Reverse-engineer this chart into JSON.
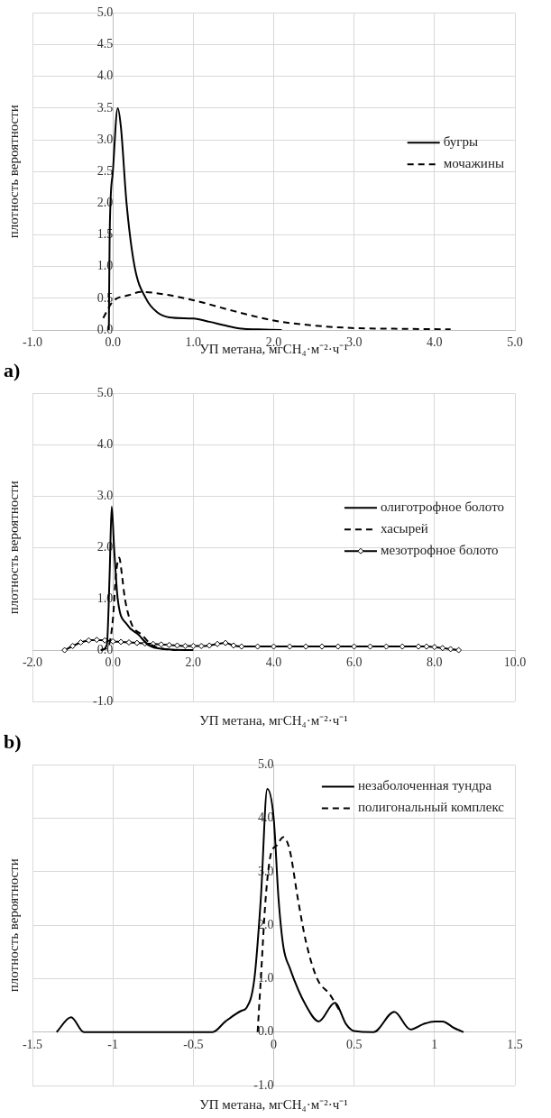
{
  "chart_data": [
    {
      "type": "line",
      "xlabel": "УП метана, мгCH₄·м⁻²·ч⁻¹",
      "ylabel": "плотность вероятности",
      "annotations": [
        "a)"
      ],
      "xlim": [
        -1,
        5
      ],
      "xticks": [
        {
          "value": -1,
          "label": "-1.0"
        },
        {
          "value": 0,
          "label": "0.0"
        },
        {
          "value": 1,
          "label": "1.0"
        },
        {
          "value": 2,
          "label": "2.0"
        },
        {
          "value": 3,
          "label": "3.0"
        },
        {
          "value": 4,
          "label": "4.0"
        },
        {
          "value": 5,
          "label": "5.0"
        }
      ],
      "ylim": [
        0,
        5
      ],
      "yticks": [
        {
          "value": 0,
          "label": "0.0"
        },
        {
          "value": 0.5,
          "label": "0.5"
        },
        {
          "value": 1,
          "label": "1.0"
        },
        {
          "value": 1.5,
          "label": "1.5"
        },
        {
          "value": 2,
          "label": "2.0"
        },
        {
          "value": 2.5,
          "label": "2.5"
        },
        {
          "value": 3,
          "label": "3.0"
        },
        {
          "value": 3.5,
          "label": "3.5"
        },
        {
          "value": 4,
          "label": "4.0"
        },
        {
          "value": 4.5,
          "label": "4.5"
        },
        {
          "value": 5,
          "label": "5.0"
        }
      ],
      "grid": true,
      "legend": "right",
      "series": [
        {
          "name": "бугры",
          "color": "#000000",
          "line_style": "solid",
          "x": [
            -0.05,
            -0.04,
            0,
            0.06,
            0.1,
            0.17,
            0.27,
            0.41,
            0.55,
            0.7,
            1.0,
            1.2,
            1.4,
            1.6,
            1.8,
            2.1
          ],
          "values": [
            0,
            1.5,
            2.5,
            3.5,
            3.2,
            2.0,
            1.0,
            0.5,
            0.28,
            0.2,
            0.18,
            0.13,
            0.07,
            0.02,
            0.01,
            0
          ]
        },
        {
          "name": "мочажины",
          "color": "#000000",
          "line_style": "dashed",
          "x": [
            -0.12,
            0,
            0.2,
            0.35,
            0.6,
            1.0,
            1.5,
            2.0,
            2.5,
            3.0,
            3.5,
            4.2
          ],
          "values": [
            0.19,
            0.45,
            0.55,
            0.6,
            0.57,
            0.47,
            0.3,
            0.15,
            0.07,
            0.03,
            0.02,
            0.01
          ]
        }
      ]
    },
    {
      "type": "line",
      "xlabel": "УП метана, мгCH₄·м⁻²·ч⁻¹",
      "ylabel": "плотность вероятности",
      "annotations": [
        "b)"
      ],
      "xlim": [
        -2,
        10
      ],
      "xticks": [
        {
          "value": -2,
          "label": "-2.0"
        },
        {
          "value": 0,
          "label": "0.0"
        },
        {
          "value": 2,
          "label": "2.0"
        },
        {
          "value": 4,
          "label": "4.0"
        },
        {
          "value": 6,
          "label": "6.0"
        },
        {
          "value": 8,
          "label": "8.0"
        },
        {
          "value": 10,
          "label": "10.0"
        }
      ],
      "ylim": [
        -1,
        5
      ],
      "yticks": [
        {
          "value": -1,
          "label": "-1.0"
        },
        {
          "value": 0,
          "label": "0.0"
        },
        {
          "value": 1,
          "label": "1.0"
        },
        {
          "value": 2,
          "label": "2.0"
        },
        {
          "value": 3,
          "label": "3.0"
        },
        {
          "value": 4,
          "label": "4.0"
        },
        {
          "value": 5,
          "label": "5.0"
        }
      ],
      "grid": true,
      "legend": "right",
      "series": [
        {
          "name": "олиготрофное болото",
          "color": "#000000",
          "line_style": "solid",
          "x": [
            -0.3,
            -0.15,
            -0.08,
            -0.03,
            0.03,
            0.12,
            0.35,
            0.64,
            0.88,
            1.3,
            2.0
          ],
          "values": [
            0,
            0.1,
            1.5,
            2.8,
            2.0,
            1.0,
            0.5,
            0.3,
            0.1,
            0.02,
            0
          ]
        },
        {
          "name": "хасырей",
          "color": "#000000",
          "line_style": "dashed",
          "x": [
            -0.3,
            -0.1,
            0,
            0.08,
            0.16,
            0.22,
            0.3,
            0.47,
            0.72,
            0.97,
            1.3,
            1.6
          ],
          "values": [
            0,
            0.1,
            0.6,
            1.5,
            1.8,
            1.5,
            1.0,
            0.5,
            0.3,
            0.1,
            0.02,
            0
          ]
        },
        {
          "name": "мезотрофное болото",
          "color": "#000000",
          "line_style": "solid",
          "marker": "diamond",
          "x": [
            -1.2,
            -1.0,
            -0.8,
            -0.6,
            -0.4,
            -0.2,
            0,
            0.2,
            0.4,
            0.6,
            0.8,
            1.0,
            1.2,
            1.4,
            1.6,
            1.8,
            2.0,
            2.2,
            2.4,
            2.6,
            2.8,
            3.0,
            3.2,
            3.6,
            4.0,
            4.4,
            4.8,
            5.2,
            5.6,
            6.0,
            6.4,
            6.8,
            7.2,
            7.6,
            7.8,
            8.0,
            8.2,
            8.4,
            8.6
          ],
          "values": [
            0,
            0.08,
            0.15,
            0.19,
            0.2,
            0.19,
            0.17,
            0.16,
            0.15,
            0.14,
            0.13,
            0.12,
            0.11,
            0.1,
            0.09,
            0.08,
            0.08,
            0.08,
            0.09,
            0.12,
            0.14,
            0.09,
            0.07,
            0.07,
            0.07,
            0.07,
            0.07,
            0.07,
            0.07,
            0.07,
            0.07,
            0.07,
            0.07,
            0.07,
            0.07,
            0.06,
            0.04,
            0.02,
            0
          ]
        }
      ]
    },
    {
      "type": "line",
      "xlabel": "УП метана, мгCH₄·м⁻²·ч⁻¹",
      "ylabel": "плотность вероятности",
      "xlim": [
        -1.5,
        1.5
      ],
      "xticks": [
        -1.5,
        -1,
        -0.5,
        0,
        0.5,
        1,
        1.5
      ],
      "ylim": [
        -1,
        5
      ],
      "yticks": [
        {
          "value": -1,
          "label": "-1.0"
        },
        {
          "value": 0,
          "label": "0.0"
        },
        {
          "value": 1,
          "label": "1.0"
        },
        {
          "value": 2,
          "label": "2.0"
        },
        {
          "value": 3,
          "label": "3.0"
        },
        {
          "value": 4,
          "label": "4.0"
        },
        {
          "value": 5,
          "label": "5.0"
        }
      ],
      "grid": true,
      "legend": "top right",
      "series": [
        {
          "name": "незаболоченная тундра",
          "color": "#000000",
          "line_style": "solid",
          "x": [
            -1.35,
            -1.26,
            -1.18,
            -0.38,
            -0.3,
            -0.2,
            -0.17,
            -0.12,
            -0.08,
            -0.04,
            0,
            0.03,
            0.06,
            0.1,
            0.2,
            0.28,
            0.38,
            0.45,
            0.5,
            0.62,
            0.75,
            0.85,
            0.93,
            1.0,
            1.05,
            1.12,
            1.18
          ],
          "values": [
            0,
            0.28,
            0,
            0,
            0.2,
            0.4,
            0.45,
            1.0,
            2.5,
            4.55,
            4.0,
            2.5,
            1.6,
            1.2,
            0.5,
            0.2,
            0.55,
            0.15,
            0.02,
            0,
            0.38,
            0.05,
            0.15,
            0.2,
            0.2,
            0.08,
            0
          ]
        },
        {
          "name": "полигональный комплекс",
          "color": "#000000",
          "line_style": "dashed",
          "x": [
            -0.1,
            -0.08,
            -0.05,
            -0.02,
            0.02,
            0.06,
            0.1,
            0.15,
            0.2,
            0.27,
            0.35,
            0.42
          ],
          "values": [
            0,
            1.0,
            2.5,
            3.3,
            3.5,
            3.65,
            3.4,
            2.5,
            1.7,
            1.0,
            0.7,
            0.35
          ]
        }
      ]
    }
  ]
}
